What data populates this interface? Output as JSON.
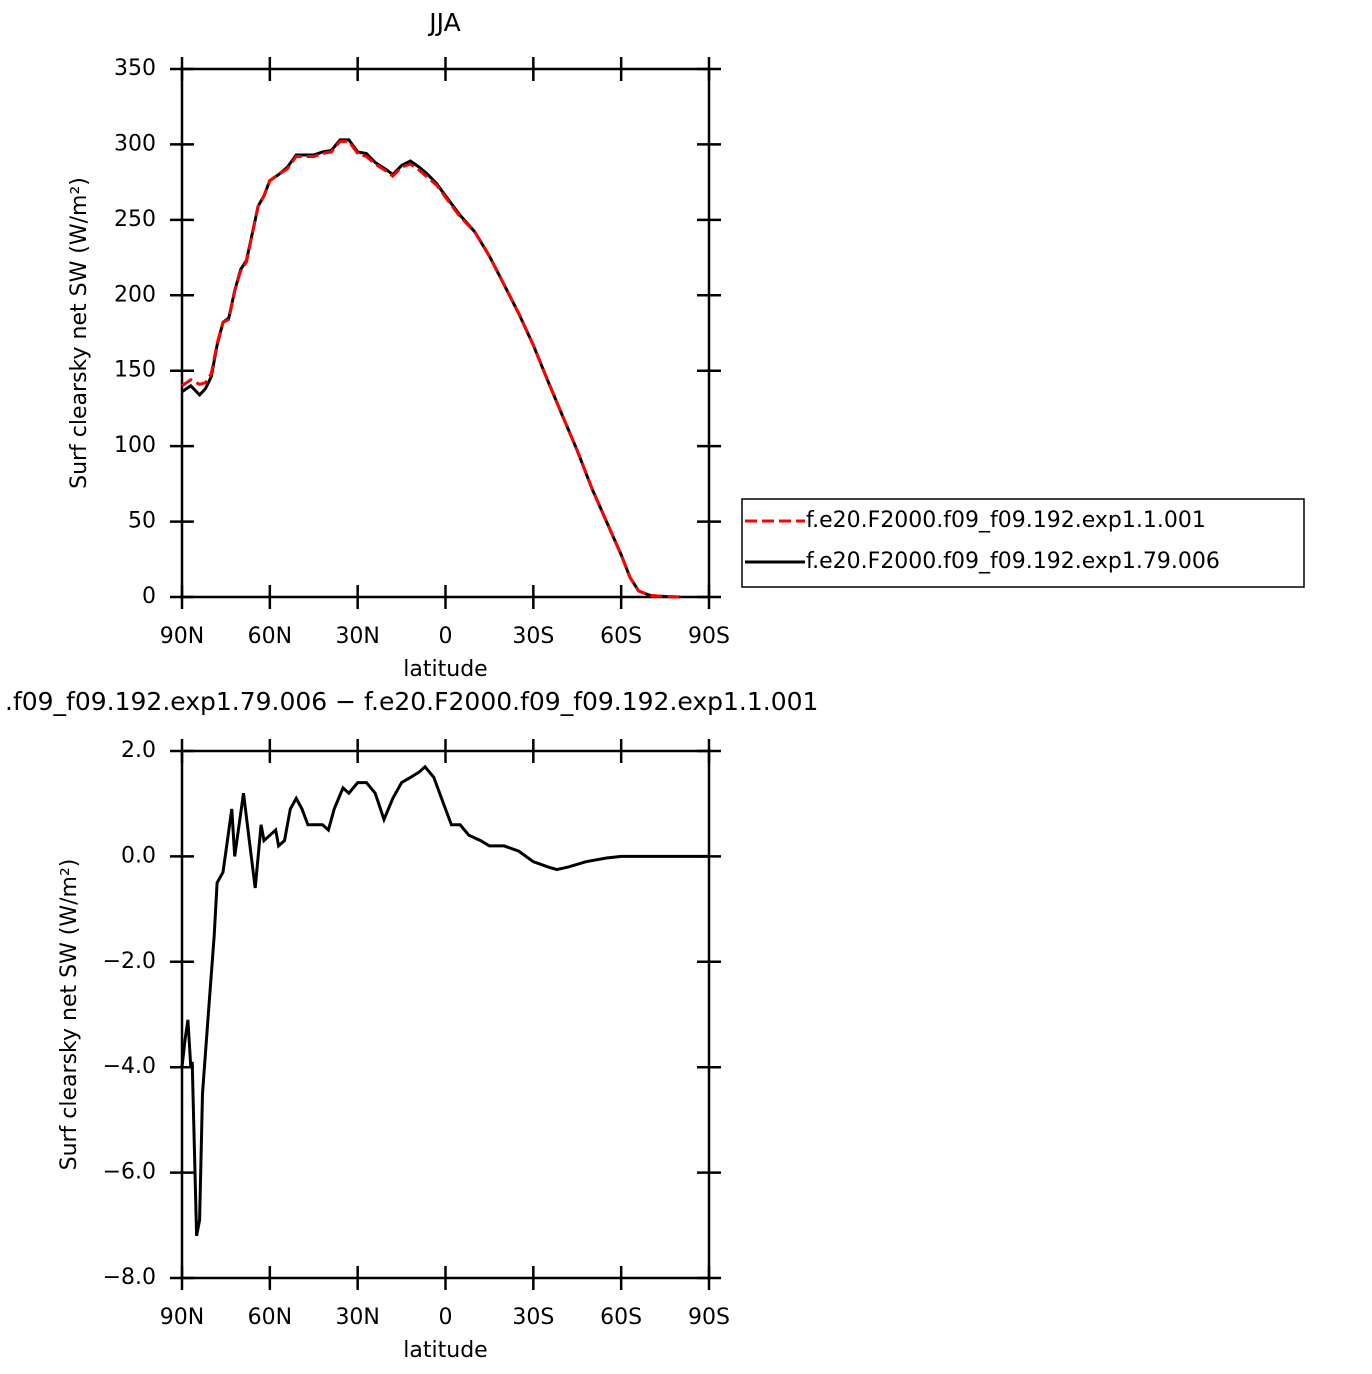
{
  "chart_data": [
    {
      "type": "line",
      "title": "JJA",
      "x_label": "latitude",
      "y_label": "Surf clearsky net SW (W/m²)",
      "xlim": [
        90,
        -90
      ],
      "ylim": [
        0,
        350
      ],
      "xticks": [
        {
          "value": 90,
          "label": "90N"
        },
        {
          "value": 60,
          "label": "60N"
        },
        {
          "value": 30,
          "label": "30N"
        },
        0,
        {
          "value": -30,
          "label": "30S"
        },
        {
          "value": -60,
          "label": "60S"
        },
        {
          "value": -90,
          "label": "90S"
        }
      ],
      "yticks": [
        0,
        50,
        100,
        150,
        200,
        250,
        300,
        350
      ],
      "legend": "right",
      "x": [
        90,
        87,
        84,
        82,
        80,
        78,
        76,
        74,
        72,
        70,
        68,
        66,
        64,
        62,
        60,
        57,
        54,
        51,
        48,
        45,
        42,
        39,
        36,
        33,
        30,
        27,
        24,
        20,
        18,
        15,
        12,
        9,
        6,
        3,
        0,
        -5,
        -10,
        -15,
        -20,
        -25,
        -30,
        -35,
        -40,
        -45,
        -50,
        -55,
        -60,
        -63,
        -66,
        -70,
        -75,
        -80
      ],
      "series": [
        {
          "name": "f.e20.F2000.f09_f09.192.exp1.1.001",
          "color": "#ff0000",
          "dash": "dashed",
          "values": [
            140,
            144,
            141,
            142,
            148,
            168,
            182,
            184,
            203,
            216,
            222,
            241,
            259,
            266,
            276,
            280,
            284,
            292,
            292,
            292,
            294,
            295,
            302,
            302,
            294,
            292,
            287,
            282,
            279,
            285,
            287,
            283,
            278,
            273,
            265,
            252,
            242,
            226,
            207,
            188,
            167,
            143,
            120,
            97,
            72,
            50,
            28,
            13,
            4,
            1,
            0.3,
            0
          ]
        },
        {
          "name": "f.e20.F2000.f09_f09.192.exp1.79.006",
          "color": "#000000",
          "dash": "solid",
          "values": [
            136,
            140,
            134,
            138,
            146,
            167,
            182,
            185,
            203,
            217,
            223,
            241,
            259,
            266,
            276,
            280,
            285,
            293,
            293,
            293,
            295,
            296,
            303,
            303,
            295,
            294,
            288,
            283,
            280,
            286,
            289,
            285,
            280,
            274,
            266,
            253,
            242,
            226,
            207,
            188,
            167,
            143,
            120,
            97,
            72,
            50,
            28,
            13,
            4,
            1,
            0.3,
            0
          ]
        }
      ]
    },
    {
      "type": "line",
      "title": ".f09_f09.192.exp1.79.006 − f.e20.F2000.f09_f09.192.exp1.1.001",
      "x_label": "latitude",
      "y_label": "Surf clearsky net SW (W/m²)",
      "xlim": [
        90,
        -90
      ],
      "ylim": [
        -8,
        2
      ],
      "xticks": [
        {
          "value": 90,
          "label": "90N"
        },
        {
          "value": 60,
          "label": "60N"
        },
        {
          "value": 30,
          "label": "30N"
        },
        0,
        {
          "value": -30,
          "label": "30S"
        },
        {
          "value": -60,
          "label": "60S"
        },
        {
          "value": -90,
          "label": "90S"
        }
      ],
      "yticks": [
        {
          "value": -8,
          "label": "−8.0"
        },
        {
          "value": -6,
          "label": "−6.0"
        },
        {
          "value": -4,
          "label": "−4.0"
        },
        {
          "value": -2,
          "label": "−2.0"
        },
        {
          "value": 0,
          "label": "0.0"
        },
        {
          "value": 2,
          "label": "2.0"
        }
      ],
      "x": [
        90,
        89,
        88,
        87,
        86.5,
        85,
        84,
        83,
        81,
        79,
        78,
        76,
        73,
        72,
        69,
        67,
        65,
        63,
        62,
        60,
        58,
        57,
        55,
        53,
        51,
        49,
        47,
        44,
        42,
        40,
        38,
        35,
        33,
        30,
        27,
        24,
        21,
        18,
        15,
        12,
        9,
        7,
        4,
        0,
        -2,
        -5,
        -8,
        -12,
        -15,
        -20,
        -25,
        -30,
        -35,
        -38,
        -42,
        -48,
        -55,
        -60,
        -90
      ],
      "series": [
        {
          "color": "#000000",
          "dash": "solid",
          "values": [
            -4.0,
            -3.5,
            -3.1,
            -4.0,
            -3.9,
            -7.2,
            -6.9,
            -4.5,
            -3.0,
            -1.5,
            -0.5,
            -0.3,
            0.9,
            0,
            1.2,
            0.3,
            -0.6,
            0.6,
            0.3,
            0.4,
            0.5,
            0.2,
            0.3,
            0.9,
            1.1,
            0.9,
            0.6,
            0.6,
            0.6,
            0.5,
            0.9,
            1.3,
            1.2,
            1.4,
            1.4,
            1.2,
            0.7,
            1.1,
            1.4,
            1.5,
            1.6,
            1.7,
            1.5,
            0.9,
            0.6,
            0.6,
            0.4,
            0.3,
            0.2,
            0.2,
            0.1,
            -0.1,
            -0.2,
            -0.25,
            -0.2,
            -0.1,
            -0.03,
            0,
            0
          ]
        }
      ]
    }
  ]
}
